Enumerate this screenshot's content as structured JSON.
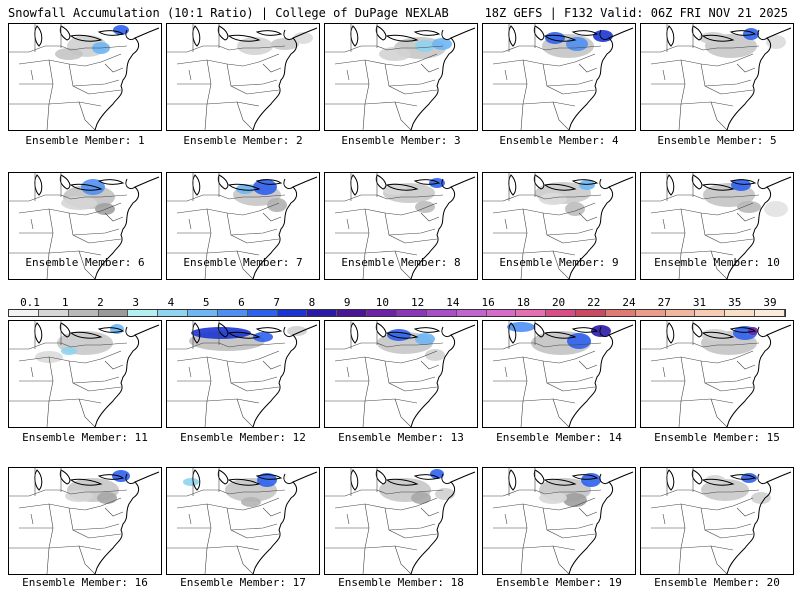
{
  "header": {
    "title": "Snowfall Accumulation (10:1 Ratio) | College of DuPage NEXLAB",
    "run_info": "18Z GEFS | F132 Valid: 06Z FRI NOV 21 2025"
  },
  "colorbar": {
    "ticks": [
      "0.1",
      "1",
      "2",
      "3",
      "4",
      "5",
      "6",
      "7",
      "8",
      "9",
      "10",
      "12",
      "14",
      "16",
      "18",
      "20",
      "22",
      "24",
      "27",
      "31",
      "35",
      "39"
    ],
    "colors": [
      "#f2f2f2",
      "#d6d6d6",
      "#b8b8b8",
      "#9a9a9a",
      "#b4f0f0",
      "#8fd3ef",
      "#6eb6f4",
      "#4f8ff2",
      "#2e61ec",
      "#1c35d2",
      "#2a1aa8",
      "#4b1597",
      "#6d22a8",
      "#8a38b8",
      "#a64fc7",
      "#c064cf",
      "#d76bc9",
      "#e46fb1",
      "#d84d86",
      "#c94a62",
      "#e07a74",
      "#ec9c8c",
      "#f1b69f",
      "#f6ccb4",
      "#f9dec8",
      "#fbebdc"
    ]
  },
  "panels": [
    {
      "label": "Ensemble Member: 1",
      "snow": [
        [
          78,
          22,
          20,
          11,
          "#d0d0d0"
        ],
        [
          92,
          24,
          9,
          6,
          "#6eb6f4"
        ],
        [
          112,
          6,
          8,
          5,
          "#2e61ec"
        ],
        [
          60,
          30,
          14,
          6,
          "#c4c4c4"
        ]
      ]
    },
    {
      "label": "Ensemble Member: 2",
      "snow": [
        [
          88,
          22,
          18,
          9,
          "#d4d4d4"
        ],
        [
          118,
          20,
          14,
          6,
          "#c9c9c9"
        ],
        [
          136,
          14,
          10,
          6,
          "#dadada"
        ]
      ]
    },
    {
      "label": "Ensemble Member: 3",
      "snow": [
        [
          95,
          24,
          26,
          11,
          "#c7c7c7"
        ],
        [
          100,
          22,
          10,
          6,
          "#8fd3ef"
        ],
        [
          117,
          20,
          10,
          6,
          "#6eb6f4"
        ],
        [
          70,
          30,
          16,
          7,
          "#d3d3d3"
        ]
      ]
    },
    {
      "label": "Ensemble Member: 4",
      "snow": [
        [
          85,
          22,
          26,
          12,
          "#c5c5c5"
        ],
        [
          72,
          14,
          10,
          6,
          "#2e61ec"
        ],
        [
          94,
          20,
          11,
          7,
          "#4f8ff2"
        ],
        [
          120,
          12,
          10,
          6,
          "#1c35d2"
        ]
      ]
    },
    {
      "label": "Ensemble Member: 5",
      "snow": [
        [
          90,
          22,
          26,
          12,
          "#c8c8c8"
        ],
        [
          110,
          10,
          8,
          6,
          "#2e61ec"
        ],
        [
          72,
          14,
          14,
          6,
          "#cfcfcf"
        ],
        [
          135,
          18,
          10,
          7,
          "#dcdcdc"
        ]
      ]
    },
    {
      "label": "Ensemble Member: 6",
      "snow": [
        [
          80,
          24,
          26,
          12,
          "#c2c2c2"
        ],
        [
          84,
          14,
          12,
          8,
          "#4f8ff2"
        ],
        [
          96,
          36,
          10,
          6,
          "#a0a0a0"
        ],
        [
          70,
          30,
          18,
          7,
          "#d6d6d6"
        ]
      ]
    },
    {
      "label": "Ensemble Member: 7",
      "snow": [
        [
          90,
          22,
          24,
          11,
          "#c6c6c6"
        ],
        [
          98,
          14,
          12,
          8,
          "#2e61ec"
        ],
        [
          78,
          16,
          9,
          5,
          "#6eb6f4"
        ],
        [
          110,
          32,
          10,
          7,
          "#b0b0b0"
        ]
      ]
    },
    {
      "label": "Ensemble Member: 8",
      "snow": [
        [
          84,
          20,
          26,
          10,
          "#cacaca"
        ],
        [
          112,
          10,
          8,
          5,
          "#2e61ec"
        ],
        [
          70,
          16,
          12,
          6,
          "#d8d8d8"
        ],
        [
          100,
          34,
          10,
          6,
          "#bdbdbd"
        ]
      ]
    },
    {
      "label": "Ensemble Member: 9",
      "snow": [
        [
          80,
          20,
          28,
          11,
          "#cbcbcb"
        ],
        [
          104,
          12,
          8,
          5,
          "#6eb6f4"
        ],
        [
          92,
          36,
          10,
          7,
          "#bcbcbc"
        ],
        [
          70,
          26,
          14,
          6,
          "#dcdcdc"
        ]
      ]
    },
    {
      "label": "Ensemble Member: 10",
      "snow": [
        [
          88,
          22,
          26,
          12,
          "#c4c4c4"
        ],
        [
          100,
          12,
          10,
          6,
          "#2e61ec"
        ],
        [
          108,
          34,
          12,
          6,
          "#b8b8b8"
        ],
        [
          135,
          36,
          12,
          8,
          "#e2e2e2"
        ]
      ]
    },
    {
      "label": "Ensemble Member: 11",
      "snow": [
        [
          76,
          22,
          28,
          12,
          "#c9c9c9"
        ],
        [
          60,
          30,
          8,
          4,
          "#8fd3ef"
        ],
        [
          108,
          8,
          7,
          5,
          "#6eb6f4"
        ],
        [
          40,
          36,
          14,
          6,
          "#dadada"
        ]
      ]
    },
    {
      "label": "Ensemble Member: 12",
      "snow": [
        [
          60,
          20,
          38,
          10,
          "#c0c0c0"
        ],
        [
          54,
          12,
          30,
          6,
          "#1c35d2"
        ],
        [
          96,
          16,
          10,
          5,
          "#2e61ec"
        ],
        [
          130,
          10,
          10,
          5,
          "#d0d0d0"
        ]
      ]
    },
    {
      "label": "Ensemble Member: 13",
      "snow": [
        [
          80,
          22,
          28,
          11,
          "#c7c7c7"
        ],
        [
          74,
          14,
          12,
          6,
          "#2e61ec"
        ],
        [
          100,
          18,
          10,
          6,
          "#6eb6f4"
        ],
        [
          110,
          34,
          10,
          6,
          "#d2d2d2"
        ]
      ]
    },
    {
      "label": "Ensemble Member: 14",
      "snow": [
        [
          78,
          22,
          30,
          12,
          "#c3c3c3"
        ],
        [
          38,
          6,
          14,
          5,
          "#4f8ff2"
        ],
        [
          96,
          20,
          12,
          8,
          "#2e61ec"
        ],
        [
          118,
          10,
          10,
          6,
          "#2a1aa8"
        ]
      ]
    },
    {
      "label": "Ensemble Member: 15",
      "snow": [
        [
          88,
          22,
          28,
          12,
          "#c4c4c4"
        ],
        [
          104,
          12,
          12,
          7,
          "#2e61ec"
        ],
        [
          112,
          10,
          5,
          4,
          "#6d22a8"
        ],
        [
          74,
          14,
          14,
          6,
          "#d2d2d2"
        ]
      ]
    },
    {
      "label": "Ensemble Member: 16",
      "snow": [
        [
          84,
          22,
          26,
          12,
          "#c6c6c6"
        ],
        [
          112,
          8,
          9,
          6,
          "#2e61ec"
        ],
        [
          98,
          30,
          10,
          6,
          "#a6a6a6"
        ],
        [
          70,
          28,
          14,
          6,
          "#d6d6d6"
        ]
      ]
    },
    {
      "label": "Ensemble Member: 17",
      "snow": [
        [
          84,
          22,
          26,
          12,
          "#c5c5c5"
        ],
        [
          100,
          12,
          10,
          7,
          "#2e61ec"
        ],
        [
          24,
          14,
          8,
          4,
          "#8fd3ef"
        ],
        [
          84,
          34,
          10,
          5,
          "#b4b4b4"
        ]
      ]
    },
    {
      "label": "Ensemble Member: 18",
      "snow": [
        [
          80,
          22,
          26,
          12,
          "#c8c8c8"
        ],
        [
          112,
          6,
          7,
          5,
          "#2e61ec"
        ],
        [
          96,
          30,
          10,
          6,
          "#a8a8a8"
        ],
        [
          120,
          26,
          10,
          6,
          "#d0d0d0"
        ]
      ]
    },
    {
      "label": "Ensemble Member: 19",
      "snow": [
        [
          82,
          22,
          26,
          12,
          "#c5c5c5"
        ],
        [
          108,
          12,
          10,
          7,
          "#2e61ec"
        ],
        [
          92,
          32,
          12,
          7,
          "#9e9e9e"
        ],
        [
          70,
          30,
          14,
          6,
          "#d8d8d8"
        ]
      ]
    },
    {
      "label": "Ensemble Member: 20",
      "snow": [
        [
          84,
          22,
          24,
          11,
          "#c9c9c9"
        ],
        [
          108,
          10,
          8,
          5,
          "#2e61ec"
        ],
        [
          74,
          12,
          10,
          5,
          "#d6d6d6"
        ],
        [
          120,
          30,
          10,
          6,
          "#d0d0d0"
        ]
      ]
    }
  ]
}
